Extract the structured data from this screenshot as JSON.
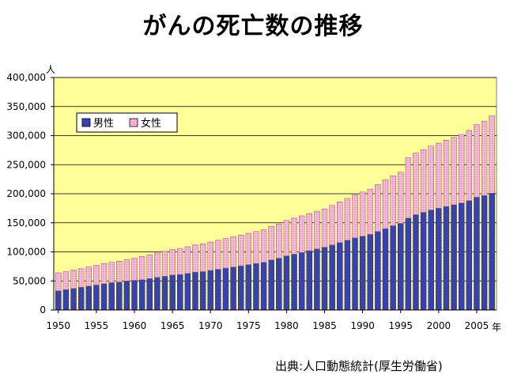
{
  "chart_data": {
    "type": "bar",
    "stacked": true,
    "title": "がんの死亡数の推移",
    "ylabel": "人",
    "xlabel": "年",
    "ylim": [
      0,
      400000
    ],
    "yticks": [
      0,
      50000,
      100000,
      150000,
      200000,
      250000,
      300000,
      350000,
      400000
    ],
    "ytick_labels": [
      "0",
      "50,000",
      "100,000",
      "150,000",
      "200,000",
      "250,000",
      "300,000",
      "350,000",
      "400,000"
    ],
    "xtick_labels": [
      "1950",
      "1955",
      "1960",
      "1965",
      "1970",
      "1975",
      "1980",
      "1985",
      "1990",
      "1995",
      "2000",
      "2005"
    ],
    "legend": {
      "position": "top-left",
      "entries": [
        "男性",
        "女性"
      ]
    },
    "grid": true,
    "categories": [
      1950,
      1951,
      1952,
      1953,
      1954,
      1955,
      1956,
      1957,
      1958,
      1959,
      1960,
      1961,
      1962,
      1963,
      1964,
      1965,
      1966,
      1967,
      1968,
      1969,
      1970,
      1971,
      1972,
      1973,
      1974,
      1975,
      1976,
      1977,
      1978,
      1979,
      1980,
      1981,
      1982,
      1983,
      1984,
      1985,
      1986,
      1987,
      1988,
      1989,
      1990,
      1991,
      1992,
      1993,
      1994,
      1995,
      1996,
      1997,
      1998,
      1999,
      2000,
      2001,
      2002,
      2003,
      2004,
      2005,
      2006,
      2007
    ],
    "series": [
      {
        "name": "男性",
        "color": "#3f48b8",
        "values": [
          33000,
          35000,
          37000,
          39000,
          41000,
          43000,
          45000,
          47000,
          48000,
          50000,
          51000,
          52000,
          54000,
          56000,
          58000,
          60000,
          61000,
          63000,
          65000,
          66000,
          68000,
          70000,
          72000,
          74000,
          76000,
          78000,
          80000,
          82000,
          86000,
          89000,
          93000,
          96000,
          99000,
          102000,
          105000,
          108000,
          112000,
          116000,
          120000,
          124000,
          127000,
          130000,
          135000,
          140000,
          145000,
          149000,
          158000,
          164000,
          168000,
          172000,
          175000,
          178000,
          181000,
          184000,
          188000,
          194000,
          197000,
          201000
        ]
      },
      {
        "name": "女性",
        "color": "#f8b8d8",
        "values": [
          31000,
          31000,
          32000,
          32000,
          33000,
          34000,
          35000,
          35000,
          36000,
          37000,
          38000,
          40000,
          41000,
          42000,
          43000,
          44000,
          45000,
          46000,
          47000,
          48000,
          49000,
          50000,
          51000,
          52000,
          53000,
          54000,
          55000,
          56000,
          58000,
          59000,
          61000,
          62000,
          63000,
          64000,
          65000,
          66000,
          68000,
          70000,
          72000,
          74000,
          76000,
          78000,
          81000,
          84000,
          86000,
          88000,
          104000,
          106000,
          108000,
          110000,
          112000,
          114000,
          116000,
          118000,
          121000,
          125000,
          128000,
          133000
        ]
      }
    ]
  },
  "source": "出典:人口動態統計(厚生労働省)",
  "colors": {
    "plot_background": "#ffff99",
    "male_bar": "#3f48b8",
    "female_bar": "#f8b8d8",
    "gridline": "#000000"
  }
}
